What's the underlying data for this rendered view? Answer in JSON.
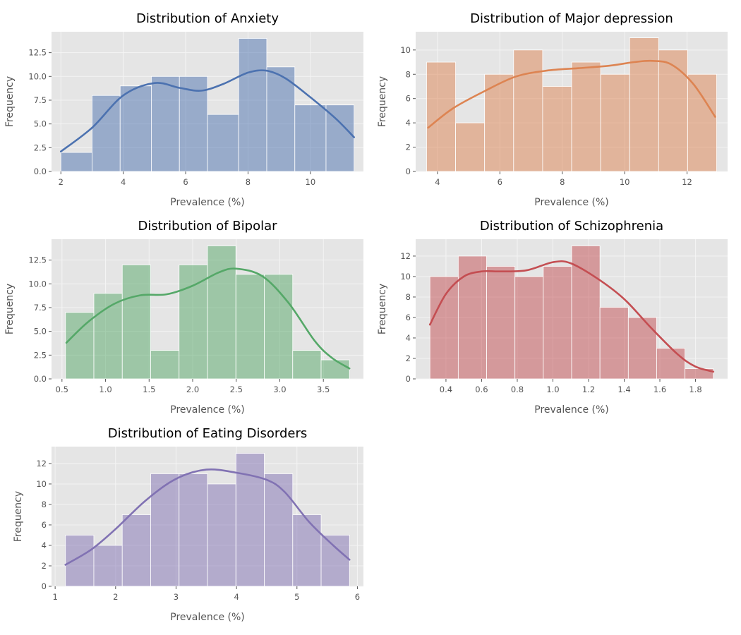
{
  "chart_data": [
    {
      "type": "bar",
      "title": "Distribution of Anxiety",
      "xlabel": "Prevalence (%)",
      "ylabel": "Frequency",
      "color": "#4c72b0",
      "bin_edges": [
        2.0,
        3.0,
        3.9,
        4.9,
        5.8,
        6.7,
        7.7,
        8.6,
        9.5,
        10.5,
        11.4
      ],
      "values": [
        2,
        8,
        9,
        10,
        10,
        6,
        14,
        11,
        7,
        7
      ],
      "kde": [
        [
          2.0,
          2.1
        ],
        [
          3.0,
          4.6
        ],
        [
          4.0,
          8.0
        ],
        [
          5.0,
          9.3
        ],
        [
          5.8,
          8.8
        ],
        [
          6.5,
          8.5
        ],
        [
          7.2,
          9.2
        ],
        [
          8.0,
          10.4
        ],
        [
          8.6,
          10.6
        ],
        [
          9.2,
          9.8
        ],
        [
          10.0,
          7.8
        ],
        [
          10.8,
          5.6
        ],
        [
          11.4,
          3.6
        ]
      ],
      "xlim": [
        1.7,
        11.7
      ],
      "ylim": [
        0,
        14.7
      ],
      "xticks": [
        2,
        4,
        6,
        8,
        10
      ],
      "yticks": [
        0.0,
        2.5,
        5.0,
        7.5,
        10.0,
        12.5
      ],
      "grid": true
    },
    {
      "type": "bar",
      "title": "Distribution of Major depression",
      "xlabel": "Prevalence (%)",
      "ylabel": "Frequency",
      "color": "#dd8452",
      "bin_edges": [
        3.65,
        4.58,
        5.51,
        6.44,
        7.37,
        8.3,
        9.23,
        10.16,
        11.09,
        12.02,
        12.95
      ],
      "values": [
        9,
        4,
        8,
        10,
        7,
        9,
        8,
        11,
        10,
        8
      ],
      "kde": [
        [
          3.7,
          3.6
        ],
        [
          4.5,
          5.2
        ],
        [
          5.5,
          6.6
        ],
        [
          6.5,
          7.8
        ],
        [
          7.5,
          8.3
        ],
        [
          8.5,
          8.5
        ],
        [
          9.5,
          8.7
        ],
        [
          10.3,
          9.0
        ],
        [
          10.9,
          9.1
        ],
        [
          11.5,
          8.8
        ],
        [
          12.2,
          7.2
        ],
        [
          12.9,
          4.5
        ]
      ],
      "xlim": [
        3.3,
        13.3
      ],
      "ylim": [
        0,
        11.5
      ],
      "xticks": [
        4,
        6,
        8,
        10,
        12
      ],
      "yticks": [
        0,
        2,
        4,
        6,
        8,
        10
      ],
      "grid": true
    },
    {
      "type": "bar",
      "title": "Distribution of Bipolar",
      "xlabel": "Prevalence (%)",
      "ylabel": "Frequency",
      "color": "#55a868",
      "bin_edges": [
        0.54,
        0.866,
        1.192,
        1.518,
        1.844,
        2.17,
        2.496,
        2.822,
        3.148,
        3.474,
        3.8
      ],
      "values": [
        7,
        9,
        12,
        3,
        12,
        14,
        11,
        11,
        3,
        2
      ],
      "kde": [
        [
          0.55,
          3.8
        ],
        [
          0.8,
          6.0
        ],
        [
          1.1,
          7.9
        ],
        [
          1.4,
          8.8
        ],
        [
          1.7,
          8.9
        ],
        [
          2.0,
          9.8
        ],
        [
          2.3,
          11.2
        ],
        [
          2.5,
          11.6
        ],
        [
          2.8,
          10.8
        ],
        [
          3.1,
          8.0
        ],
        [
          3.4,
          4.0
        ],
        [
          3.6,
          2.2
        ],
        [
          3.8,
          1.1
        ]
      ],
      "xlim": [
        0.38,
        3.96
      ],
      "ylim": [
        0,
        14.7
      ],
      "xticks": [
        0.5,
        1.0,
        1.5,
        2.0,
        2.5,
        3.0,
        3.5
      ],
      "yticks": [
        0.0,
        2.5,
        5.0,
        7.5,
        10.0,
        12.5
      ],
      "grid": true
    },
    {
      "type": "bar",
      "title": "Distribution of Schizophrenia",
      "xlabel": "Prevalence (%)",
      "ylabel": "Frequency",
      "color": "#c44e52",
      "bin_edges": [
        0.31,
        0.469,
        0.628,
        0.787,
        0.946,
        1.105,
        1.264,
        1.423,
        1.582,
        1.741,
        1.9
      ],
      "values": [
        10,
        12,
        11,
        10,
        11,
        13,
        7,
        6,
        3,
        1
      ],
      "kde": [
        [
          0.31,
          5.3
        ],
        [
          0.4,
          8.3
        ],
        [
          0.5,
          10.0
        ],
        [
          0.6,
          10.5
        ],
        [
          0.7,
          10.5
        ],
        [
          0.85,
          10.6
        ],
        [
          1.0,
          11.4
        ],
        [
          1.1,
          11.3
        ],
        [
          1.25,
          9.8
        ],
        [
          1.4,
          7.8
        ],
        [
          1.55,
          5.0
        ],
        [
          1.7,
          2.4
        ],
        [
          1.8,
          1.2
        ],
        [
          1.9,
          0.7
        ]
      ],
      "xlim": [
        0.23,
        1.98
      ],
      "ylim": [
        0,
        13.65
      ],
      "xticks": [
        0.4,
        0.6,
        0.8,
        1.0,
        1.2,
        1.4,
        1.6,
        1.8
      ],
      "yticks": [
        0,
        2,
        4,
        6,
        8,
        10,
        12
      ],
      "grid": true
    },
    {
      "type": "bar",
      "title": "Distribution of Eating Disorders",
      "xlabel": "Prevalence (%)",
      "ylabel": "Frequency",
      "color": "#8172b3",
      "bin_edges": [
        1.17,
        1.64,
        2.11,
        2.58,
        3.05,
        3.52,
        3.99,
        4.46,
        4.93,
        5.4,
        5.87
      ],
      "values": [
        5,
        4,
        7,
        11,
        11,
        10,
        13,
        11,
        7,
        5
      ],
      "kde": [
        [
          1.17,
          2.1
        ],
        [
          1.6,
          3.6
        ],
        [
          2.0,
          5.6
        ],
        [
          2.5,
          8.4
        ],
        [
          3.0,
          10.5
        ],
        [
          3.5,
          11.4
        ],
        [
          4.0,
          11.1
        ],
        [
          4.5,
          10.4
        ],
        [
          4.8,
          9.2
        ],
        [
          5.2,
          6.3
        ],
        [
          5.6,
          4.0
        ],
        [
          5.87,
          2.6
        ]
      ],
      "xlim": [
        0.94,
        6.1
      ],
      "ylim": [
        0,
        13.65
      ],
      "xticks": [
        1,
        2,
        3,
        4,
        5,
        6
      ],
      "yticks": [
        0,
        2,
        4,
        6,
        8,
        10,
        12
      ],
      "grid": true
    }
  ]
}
